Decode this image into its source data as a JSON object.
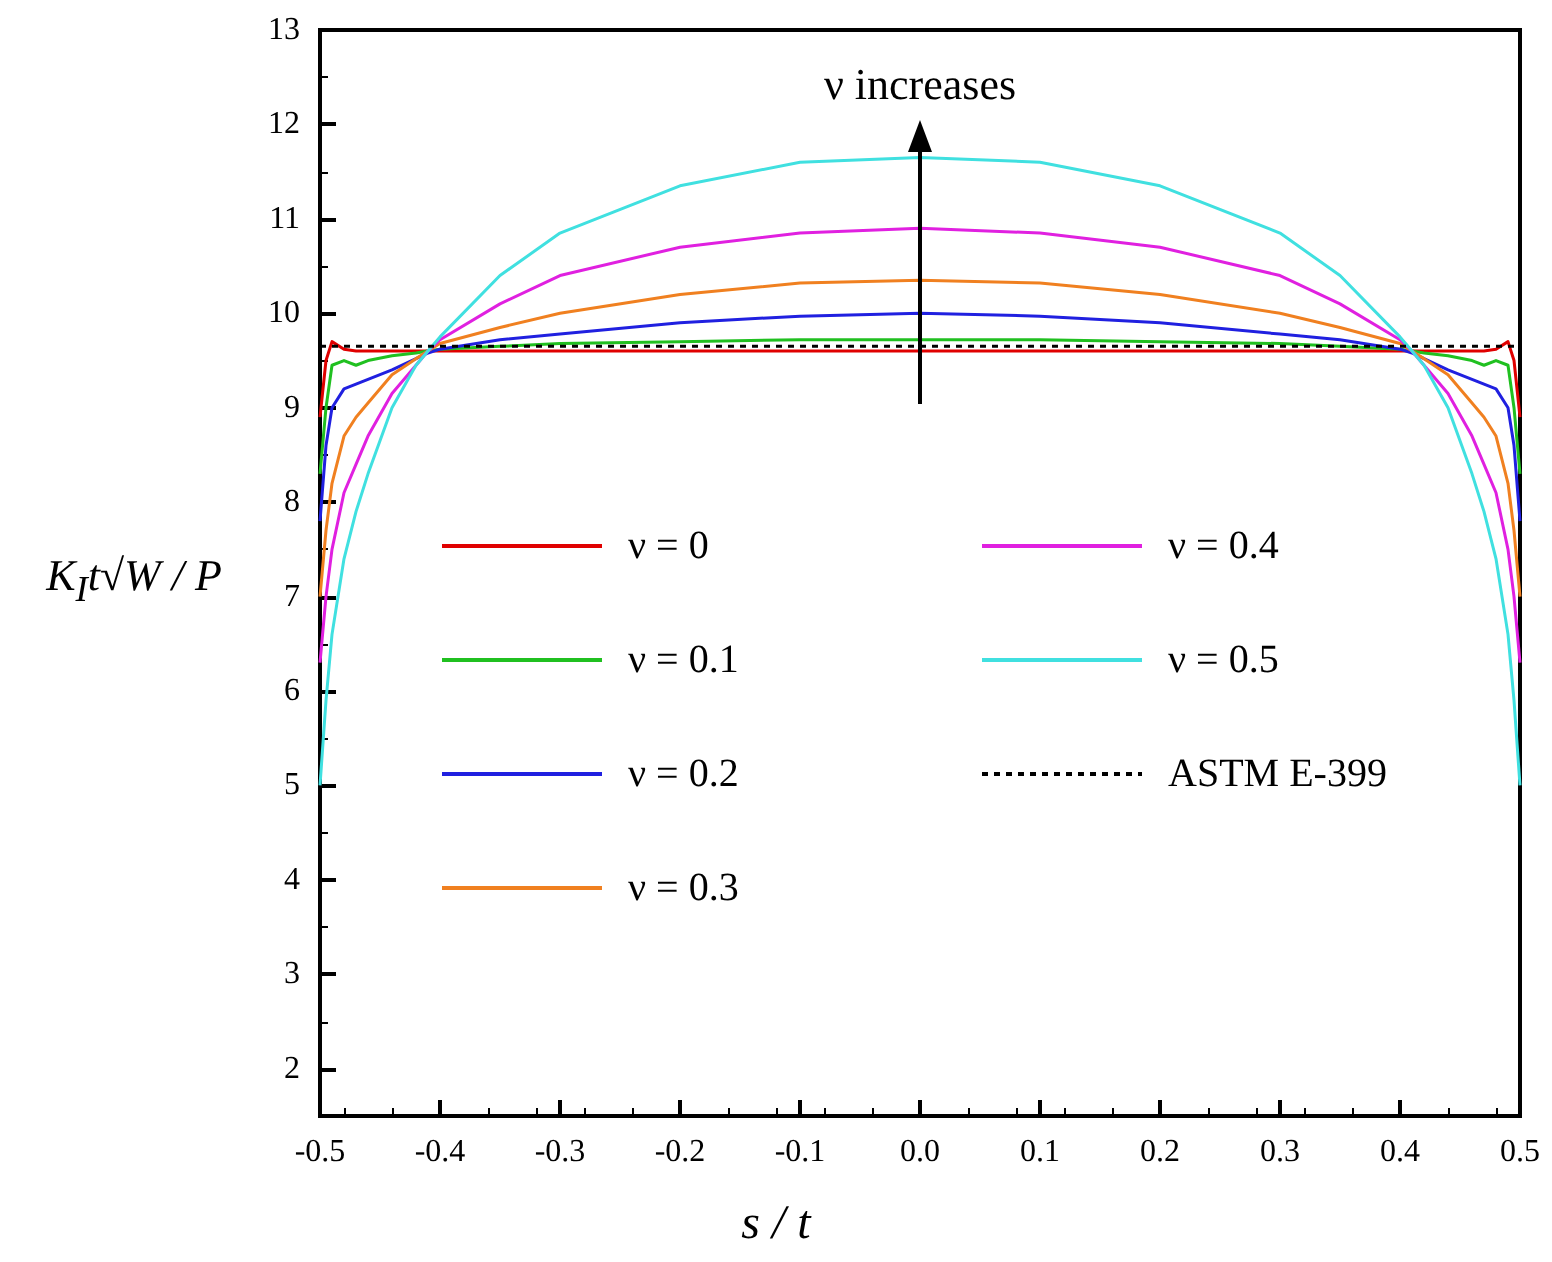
{
  "chart_data": {
    "type": "line",
    "xlabel": "s / t",
    "ylabel": "K$_{I}$t√W / P",
    "x": [
      -0.5,
      -0.495,
      -0.49,
      -0.48,
      -0.47,
      -0.46,
      -0.44,
      -0.42,
      -0.41,
      -0.4,
      -0.35,
      -0.3,
      -0.2,
      -0.1,
      0,
      0.1,
      0.2,
      0.3,
      0.35,
      0.4,
      0.41,
      0.42,
      0.44,
      0.46,
      0.47,
      0.48,
      0.49,
      0.495,
      0.5
    ],
    "series": [
      {
        "name": "ν = 0",
        "color": "#e00000",
        "values": [
          8.9,
          9.5,
          9.7,
          9.62,
          9.6,
          9.6,
          9.6,
          9.6,
          9.6,
          9.6,
          9.6,
          9.6,
          9.6,
          9.6,
          9.6,
          9.6,
          9.6,
          9.6,
          9.6,
          9.6,
          9.6,
          9.6,
          9.6,
          9.6,
          9.6,
          9.62,
          9.7,
          9.5,
          8.9
        ]
      },
      {
        "name": "ν = 0.1",
        "color": "#20c020",
        "values": [
          8.3,
          9.0,
          9.45,
          9.5,
          9.45,
          9.5,
          9.55,
          9.58,
          9.6,
          9.62,
          9.65,
          9.68,
          9.7,
          9.72,
          9.72,
          9.72,
          9.7,
          9.68,
          9.65,
          9.62,
          9.6,
          9.58,
          9.55,
          9.5,
          9.45,
          9.5,
          9.45,
          9.0,
          8.3
        ]
      },
      {
        "name": "ν = 0.2",
        "color": "#2020e0",
        "values": [
          7.8,
          8.6,
          9.0,
          9.2,
          9.25,
          9.3,
          9.4,
          9.52,
          9.58,
          9.62,
          9.72,
          9.78,
          9.9,
          9.97,
          10.0,
          9.97,
          9.9,
          9.78,
          9.72,
          9.62,
          9.58,
          9.52,
          9.4,
          9.3,
          9.25,
          9.2,
          9.0,
          8.6,
          7.8
        ]
      },
      {
        "name": "ν = 0.3",
        "color": "#f08020",
        "values": [
          7.0,
          7.7,
          8.2,
          8.7,
          8.9,
          9.05,
          9.35,
          9.52,
          9.6,
          9.68,
          9.85,
          10.0,
          10.2,
          10.32,
          10.35,
          10.32,
          10.2,
          10.0,
          9.85,
          9.68,
          9.6,
          9.52,
          9.35,
          9.05,
          8.9,
          8.7,
          8.2,
          7.7,
          7.0
        ]
      },
      {
        "name": "ν = 0.4",
        "color": "#e020e0",
        "values": [
          6.3,
          7.0,
          7.5,
          8.1,
          8.4,
          8.7,
          9.15,
          9.45,
          9.6,
          9.72,
          10.1,
          10.4,
          10.7,
          10.85,
          10.9,
          10.85,
          10.7,
          10.4,
          10.1,
          9.72,
          9.6,
          9.45,
          9.15,
          8.7,
          8.4,
          8.1,
          7.5,
          7.0,
          6.3
        ]
      },
      {
        "name": "ν = 0.5",
        "color": "#40e0e0",
        "values": [
          5.0,
          5.9,
          6.6,
          7.4,
          7.9,
          8.3,
          9.0,
          9.45,
          9.6,
          9.75,
          10.4,
          10.85,
          11.35,
          11.6,
          11.65,
          11.6,
          11.35,
          10.85,
          10.4,
          9.75,
          9.6,
          9.45,
          9.0,
          8.3,
          7.9,
          7.4,
          6.6,
          5.9,
          5.0
        ]
      },
      {
        "name": "ASTM E-399",
        "color": "#000000",
        "line_style": "dashed",
        "x": [
          -0.5,
          0.5
        ],
        "values": [
          9.65,
          9.65
        ]
      }
    ],
    "annotations": [
      "ν increases"
    ],
    "xlim": [
      -0.5,
      0.5
    ],
    "xticks": [
      -0.5,
      -0.4,
      -0.3,
      -0.2,
      -0.1,
      {
        "value": 0,
        "label": "0.0"
      },
      0.1,
      0.2,
      0.3,
      0.4,
      0.5
    ],
    "ylim": [
      1.5,
      13
    ],
    "yticks": [
      2,
      3,
      4,
      5,
      6,
      7,
      8,
      9,
      10,
      11,
      12,
      13
    ],
    "grid": false,
    "legend": "center",
    "marker": "none",
    "line_style": "solid"
  }
}
